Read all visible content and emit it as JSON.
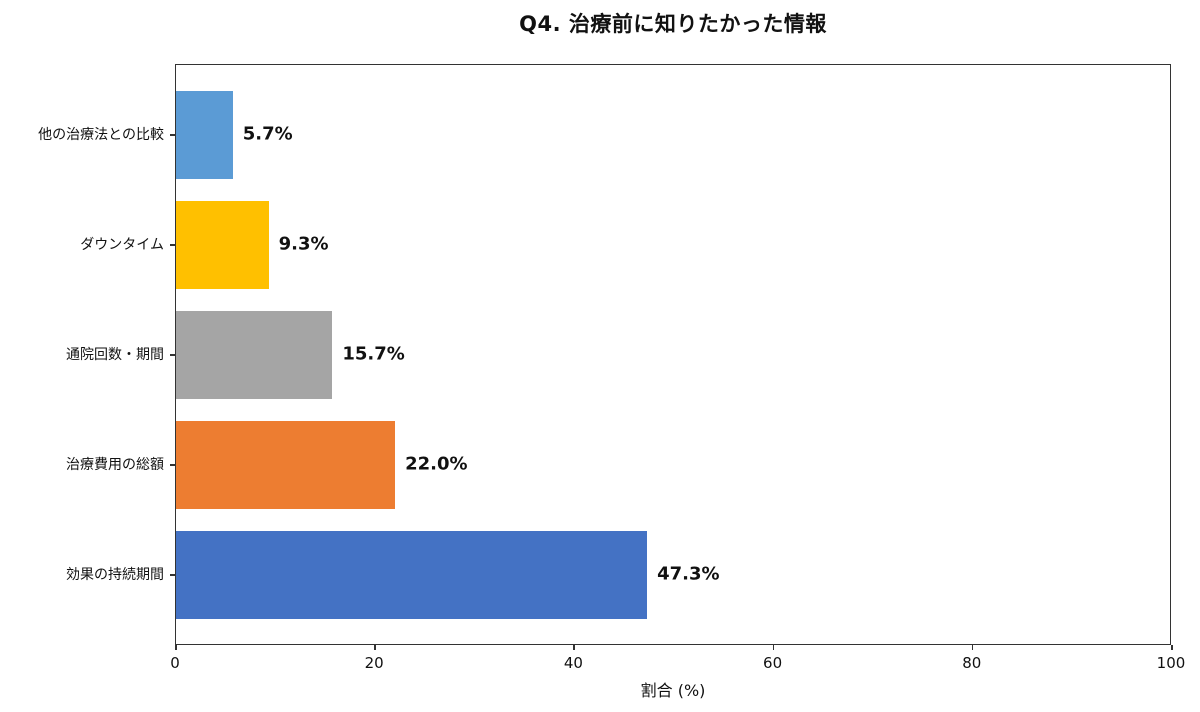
{
  "chart_data": {
    "type": "bar",
    "orientation": "horizontal",
    "title": "Q4. 治療前に知りたかった情報",
    "xlabel": "割合 (%)",
    "ylabel": "",
    "xlim": [
      0,
      100
    ],
    "xticks": [
      "0",
      "20",
      "40",
      "60",
      "80",
      "100"
    ],
    "grid": false,
    "legend": null,
    "categories": [
      "他の治療法との比較",
      "ダウンタイム",
      "通院回数・期間",
      "治療費用の総額",
      "効果の持続期間"
    ],
    "values": [
      5.7,
      9.3,
      15.7,
      22.0,
      47.3
    ],
    "value_labels": [
      "5.7%",
      "9.3%",
      "15.7%",
      "22.0%",
      "47.3%"
    ],
    "colors": [
      "#5B9BD5",
      "#FFC000",
      "#A5A5A5",
      "#ED7D31",
      "#4472C4"
    ]
  }
}
